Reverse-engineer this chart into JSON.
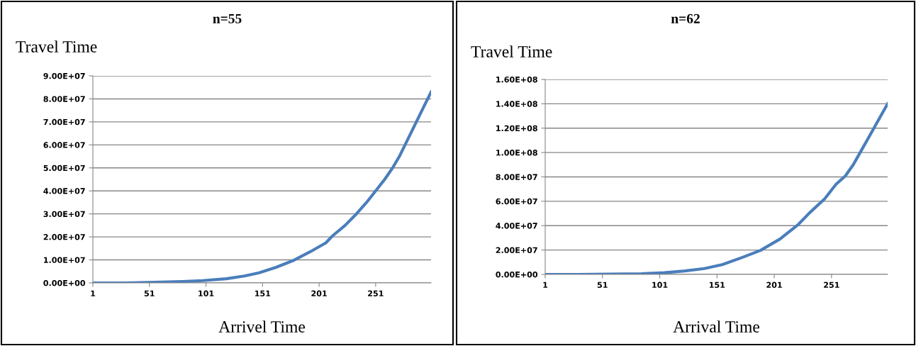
{
  "chart_data": [
    {
      "type": "line",
      "title": "n=55",
      "ylabel": "Travel Time",
      "xlabel": "Arrivel Time",
      "grid": "y",
      "marker": "none",
      "line_style": "solid",
      "xlim": [
        1,
        300
      ],
      "xticks": [
        1,
        51,
        101,
        151,
        201,
        251
      ],
      "ylim": [
        0,
        90000000
      ],
      "yticks": [
        {
          "value": 0,
          "label": "0.00E+00"
        },
        {
          "value": 10000000,
          "label": "1.00E+07"
        },
        {
          "value": 20000000,
          "label": "2.00E+07"
        },
        {
          "value": 30000000,
          "label": "3.00E+07"
        },
        {
          "value": 40000000,
          "label": "4.00E+07"
        },
        {
          "value": 50000000,
          "label": "5.00E+07"
        },
        {
          "value": 60000000,
          "label": "6.00E+07"
        },
        {
          "value": 70000000,
          "label": "7.00E+07"
        },
        {
          "value": 80000000,
          "label": "8.00E+07"
        },
        {
          "value": 90000000,
          "label": "9.00E+07"
        }
      ],
      "series": [
        {
          "color": "#4a7ebb",
          "x": [
            1,
            30,
            56,
            80,
            98,
            119,
            135,
            148,
            163,
            178,
            193,
            207,
            213,
            224,
            234,
            243,
            251,
            259,
            266,
            272,
            277,
            282,
            287,
            293,
            300
          ],
          "values": [
            0,
            0,
            300000,
            600000,
            1000000,
            1800000,
            3000000,
            4400000,
            6800000,
            9700000,
            13500000,
            17400000,
            20500000,
            25000000,
            30000000,
            35000000,
            40000000,
            45000000,
            50000000,
            55000000,
            60000000,
            65000000,
            70000000,
            76000000,
            83000000
          ]
        }
      ]
    },
    {
      "type": "line",
      "title": "n=62",
      "ylabel": "Travel Time",
      "xlabel": "Arrival Time",
      "grid": "y",
      "marker": "none",
      "line_style": "solid",
      "xlim": [
        1,
        300
      ],
      "xticks": [
        1,
        51,
        101,
        151,
        201,
        251
      ],
      "ylim": [
        0,
        160000000
      ],
      "yticks": [
        {
          "value": 0,
          "label": "0.00E+00"
        },
        {
          "value": 20000000,
          "label": "2.00E+07"
        },
        {
          "value": 40000000,
          "label": "4.00E+07"
        },
        {
          "value": 60000000,
          "label": "6.00E+07"
        },
        {
          "value": 80000000,
          "label": "8.00E+07"
        },
        {
          "value": 100000000,
          "label": "1.00E+08"
        },
        {
          "value": 120000000,
          "label": "1.20E+08"
        },
        {
          "value": 140000000,
          "label": "1.40E+08"
        },
        {
          "value": 160000000,
          "label": "1.60E+08"
        }
      ],
      "series": [
        {
          "color": "#4a7ebb",
          "x": [
            1,
            30,
            57,
            85,
            105,
            123,
            140,
            156,
            173,
            189,
            206,
            222,
            232,
            245,
            255,
            263,
            270,
            276,
            282,
            288,
            294,
            300
          ],
          "values": [
            0,
            0,
            200000,
            600000,
            1400000,
            2800000,
            4800000,
            8100000,
            13900000,
            19700000,
            29000000,
            41000000,
            50700000,
            62000000,
            74000000,
            80700000,
            90000000,
            100000000,
            110000000,
            120000000,
            130000000,
            140000000
          ]
        }
      ]
    }
  ]
}
